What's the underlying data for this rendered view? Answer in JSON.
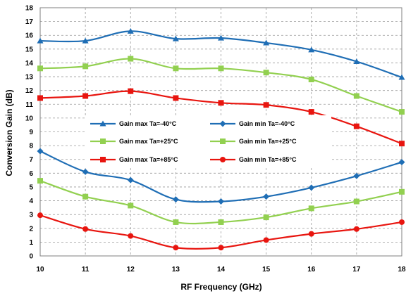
{
  "chart_data": {
    "type": "line",
    "xlabel": "RF Frequency (GHz)",
    "ylabel": "Conversion Gain (dB)",
    "x": [
      10,
      11,
      12,
      13,
      14,
      15,
      16,
      17,
      18
    ],
    "xlim": [
      10,
      18
    ],
    "ylim": [
      0,
      18
    ],
    "x_ticks": [
      "10",
      "11",
      "12",
      "13",
      "14",
      "15",
      "16",
      "17",
      "18"
    ],
    "y_ticks": [
      "0",
      "1",
      "2",
      "3",
      "4",
      "5",
      "6",
      "7",
      "8",
      "9",
      "10",
      "11",
      "12",
      "13",
      "14",
      "15",
      "16",
      "17",
      "18"
    ],
    "grid": "dashed",
    "legend_position": "center",
    "series": [
      {
        "name": "Gain max Ta=-40°C",
        "color": "#1f6eb5",
        "marker": "triangle",
        "values": [
          15.6,
          15.6,
          16.3,
          15.75,
          15.8,
          15.45,
          14.95,
          14.1,
          12.95
        ]
      },
      {
        "name": "Gain min Ta=-40°C",
        "color": "#1f6eb5",
        "marker": "diamond",
        "values": [
          7.6,
          6.1,
          5.5,
          4.1,
          3.95,
          4.3,
          4.95,
          5.8,
          6.8
        ]
      },
      {
        "name": "Gain max Ta=+25°C",
        "color": "#92d050",
        "marker": "square",
        "values": [
          13.6,
          13.75,
          14.3,
          13.6,
          13.6,
          13.3,
          12.8,
          11.6,
          10.45
        ]
      },
      {
        "name": "Gain min Ta=+25°C",
        "color": "#92d050",
        "marker": "square",
        "values": [
          5.45,
          4.3,
          3.65,
          2.45,
          2.45,
          2.8,
          3.45,
          3.95,
          4.65
        ]
      },
      {
        "name": "Gain max Ta=+85°C",
        "color": "#e8150f",
        "marker": "square",
        "values": [
          11.45,
          11.6,
          11.95,
          11.45,
          11.1,
          10.95,
          10.45,
          9.4,
          8.15
        ]
      },
      {
        "name": "Gain min Ta=+85°C",
        "color": "#e8150f",
        "marker": "circle",
        "values": [
          2.95,
          1.95,
          1.45,
          0.6,
          0.6,
          1.15,
          1.6,
          1.95,
          2.45
        ]
      }
    ]
  }
}
